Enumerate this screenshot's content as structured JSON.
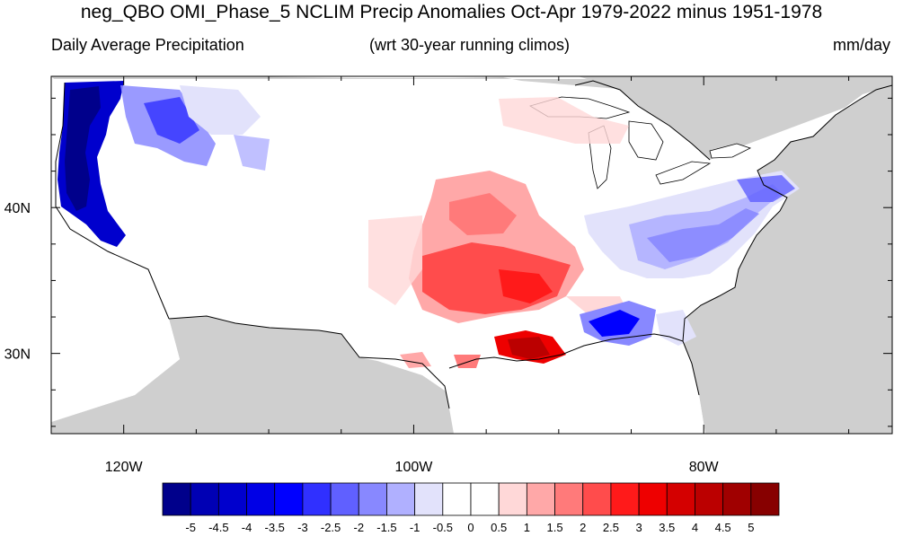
{
  "title": "neg_QBO OMI_Phase_5 NCLIM Precip Anomalies Oct-Apr 1979-2022 minus 1951-1978",
  "subtitle_left": "Daily Average Precipitation",
  "subtitle_center": "(wrt 30-year running climos)",
  "subtitle_right": "mm/day",
  "map": {
    "lon_range": [
      -125,
      -67
    ],
    "lat_range": [
      24.5,
      49
    ],
    "lon_ticks": [
      {
        "value": -120,
        "label": "120W"
      },
      {
        "value": -100,
        "label": "100W"
      },
      {
        "value": -80,
        "label": "80W"
      }
    ],
    "lat_ticks": [
      {
        "value": 40,
        "label": "40N"
      },
      {
        "value": 30,
        "label": "30N"
      }
    ],
    "land_mask_color": "#cfcfcf",
    "coast_color": "#000000"
  },
  "colorbar": {
    "colors": [
      "#00008b",
      "#0000b4",
      "#0000cd",
      "#0000e6",
      "#0000ff",
      "#3030ff",
      "#6060ff",
      "#8888ff",
      "#b0b0ff",
      "#e2e2fb",
      "#ffffff",
      "#ffffff",
      "#ffd8d8",
      "#ffa8a8",
      "#ff7a7a",
      "#ff4c4c",
      "#ff1a1a",
      "#ee0000",
      "#d40000",
      "#bb0000",
      "#a00000",
      "#870000"
    ],
    "labels": [
      "-5",
      "-4.5",
      "-4",
      "-3.5",
      "-3",
      "-2.5",
      "-2",
      "-1.5",
      "-1",
      "-0.5",
      "0",
      "0.5",
      "1",
      "1.5",
      "2",
      "2.5",
      "3",
      "3.5",
      "4",
      "4.5",
      "5"
    ]
  }
}
